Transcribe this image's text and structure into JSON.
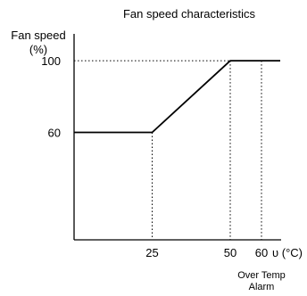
{
  "chart_data": {
    "type": "line",
    "title": "Fan speed characteristics",
    "ylabel_line1": "Fan speed",
    "ylabel_line2": "(%)",
    "xlabel": "υ (°C)",
    "series": [
      {
        "x": [
          0,
          25,
          50,
          66
        ],
        "y": [
          60,
          60,
          100,
          100
        ]
      }
    ],
    "xlim": [
      0,
      66
    ],
    "ylim": [
      0,
      115
    ],
    "x_ticks": [
      {
        "value": 25,
        "label": "25"
      },
      {
        "value": 50,
        "label": "50"
      },
      {
        "value": 60,
        "label": "60"
      }
    ],
    "y_ticks": [
      {
        "value": 60,
        "label": "60"
      },
      {
        "value": 100,
        "label": "100"
      }
    ],
    "guides": [
      {
        "orientation": "vertical",
        "x": 25,
        "y": 60
      },
      {
        "orientation": "vertical",
        "x": 50,
        "y": 100
      },
      {
        "orientation": "vertical",
        "x": 60,
        "y": 100
      },
      {
        "orientation": "horizontal",
        "x": 50,
        "y": 100
      }
    ],
    "annotation": {
      "x": 60,
      "line1": "Over Temp",
      "line2": "Alarm"
    },
    "grid": false,
    "legend": "none"
  }
}
